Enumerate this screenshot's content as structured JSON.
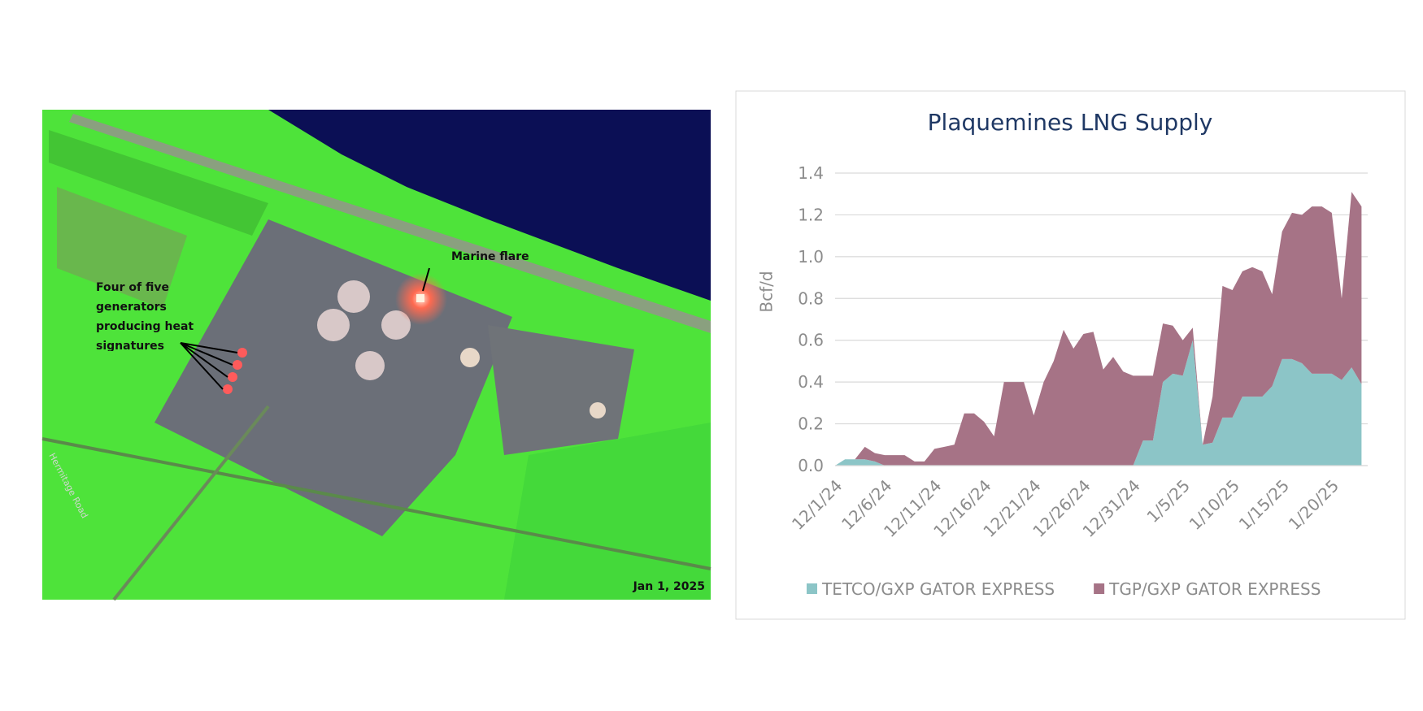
{
  "image": {
    "flare_label": "Marine flare",
    "generators_label": "Four of five generators producing heat signatures",
    "date_label": "Jan 1, 2025",
    "road_label": "Hermitage Road"
  },
  "chart_data": {
    "type": "stacked_area",
    "title": "Plaquemines LNG Supply",
    "y_label": "Bcf/d",
    "categories": [
      "12/1/24",
      null,
      null,
      null,
      null,
      "12/6/24",
      null,
      null,
      null,
      null,
      "12/11/24",
      null,
      null,
      null,
      null,
      "12/16/24",
      null,
      null,
      null,
      null,
      "12/21/24",
      null,
      null,
      null,
      null,
      "12/26/24",
      null,
      null,
      null,
      null,
      "12/31/24",
      null,
      null,
      null,
      null,
      "1/5/25",
      null,
      null,
      null,
      null,
      "1/10/25",
      null,
      null,
      null,
      null,
      "1/15/25",
      null,
      null,
      null,
      null,
      "1/20/25",
      null,
      null,
      null
    ],
    "series": [
      {
        "name": "TETCO/GXP GATOR EXPRESS",
        "color": "#8cc5c7",
        "values": [
          0,
          0.03,
          0.03,
          0.03,
          0.02,
          0,
          0,
          0,
          0,
          0,
          0,
          0,
          0,
          0,
          0,
          0,
          0,
          0,
          0,
          0,
          0,
          0,
          0,
          0,
          0,
          0,
          0,
          0,
          0,
          0,
          0,
          0.12,
          0.12,
          0.4,
          0.44,
          0.43,
          0.6,
          0.1,
          0.11,
          0.23,
          0.23,
          0.33,
          0.33,
          0.33,
          0.38,
          0.51,
          0.51,
          0.49,
          0.44,
          0.44,
          0.44,
          0.41,
          0.47,
          0.39
        ]
      },
      {
        "name": "TGP/GXP GATOR EXPRESS",
        "color": "#a67386",
        "values": [
          0,
          0,
          0,
          0.06,
          0.04,
          0.05,
          0.05,
          0.05,
          0.02,
          0.02,
          0.08,
          0.09,
          0.1,
          0.25,
          0.25,
          0.21,
          0.14,
          0.4,
          0.4,
          0.4,
          0.24,
          0.4,
          0.5,
          0.65,
          0.56,
          0.63,
          0.64,
          0.46,
          0.52,
          0.45,
          0.43,
          0.31,
          0.31,
          0.28,
          0.23,
          0.17,
          0.06,
          0,
          0.22,
          0.63,
          0.61,
          0.6,
          0.62,
          0.6,
          0.44,
          0.61,
          0.7,
          0.71,
          0.8,
          0.8,
          0.77,
          0.39,
          0.84,
          0.85
        ]
      }
    ],
    "ylim": [
      0,
      1.4
    ],
    "yticks": [
      {
        "value": 0,
        "label": "0.0"
      },
      {
        "value": 0.2,
        "label": "0.2"
      },
      {
        "value": 0.4,
        "label": "0.4"
      },
      {
        "value": 0.6,
        "label": "0.6"
      },
      {
        "value": 0.8,
        "label": "0.8"
      },
      {
        "value": 1,
        "label": "1.0"
      },
      {
        "value": 1.2,
        "label": "1.2"
      },
      {
        "value": 1.4,
        "label": "1.4"
      }
    ],
    "grid": true,
    "legend": "bottom"
  }
}
